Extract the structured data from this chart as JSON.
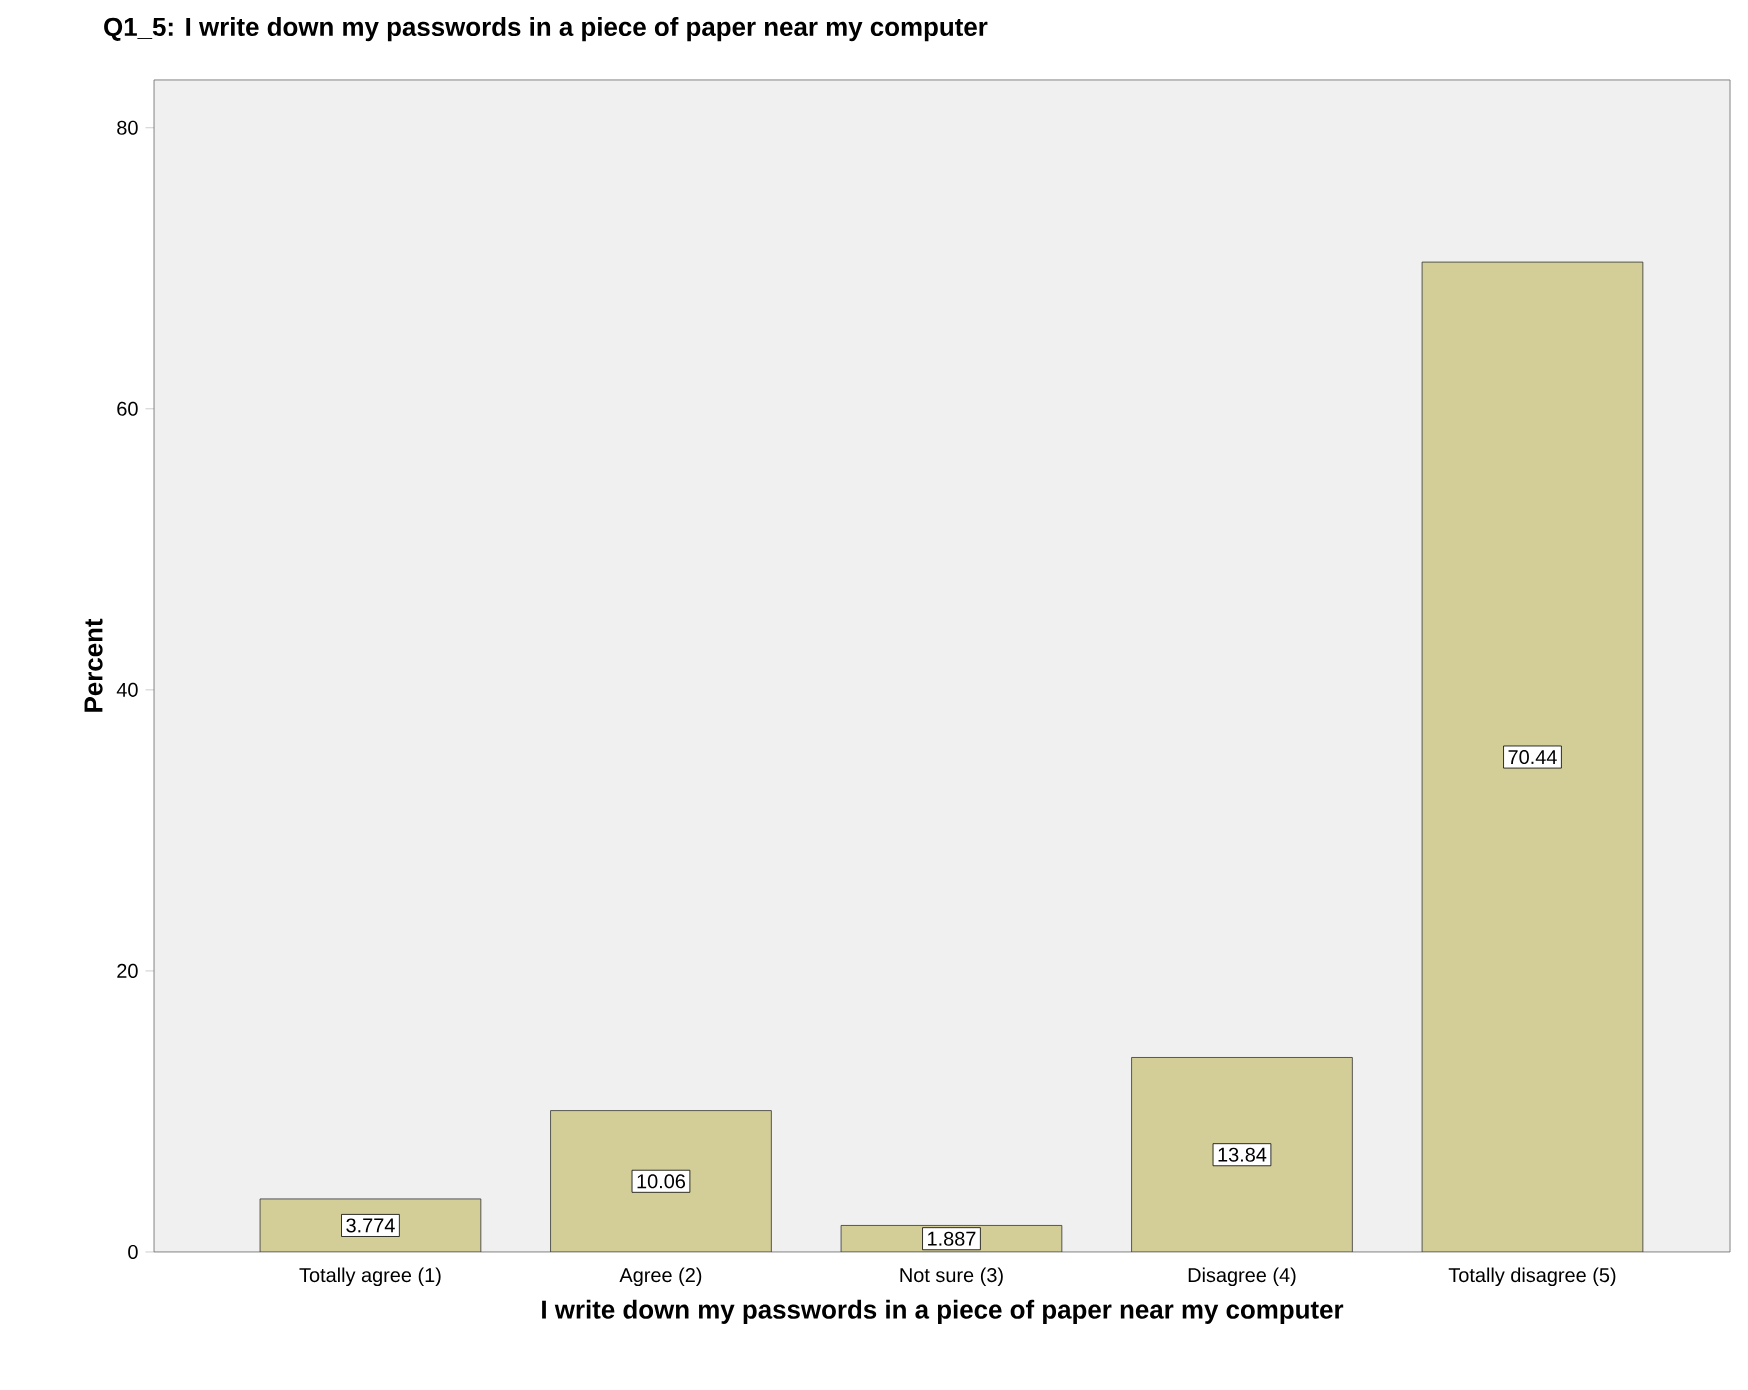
{
  "chart_data": {
    "type": "bar",
    "title": "Q1_5: I write down my passwords in a piece of paper near my computer",
    "xlabel": "I write down my passwords in a piece of paper near my computer",
    "ylabel": "Percent",
    "categories": [
      "Totally agree (1)",
      "Agree (2)",
      "Not sure (3)",
      "Disagree (4)",
      "Totally disagree (5)"
    ],
    "values": [
      3.774,
      10.06,
      1.887,
      13.84,
      70.44
    ],
    "color": "#d3ce97",
    "data_labels": true,
    "ylim": [
      0,
      83.4
    ],
    "yticks": [
      0,
      20,
      40,
      60,
      80
    ],
    "grid": false
  }
}
